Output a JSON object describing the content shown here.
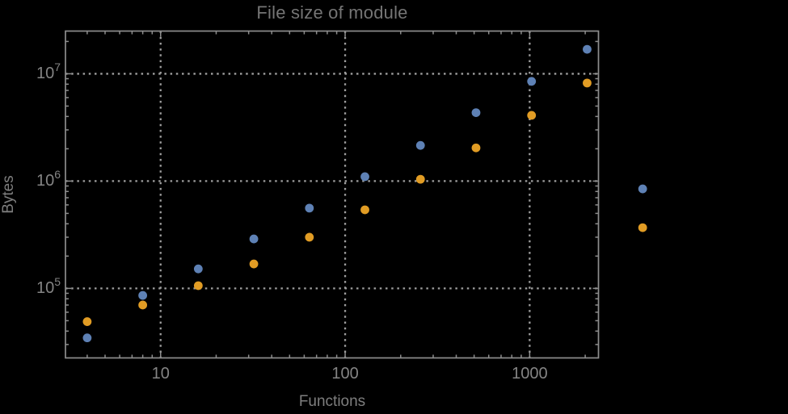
{
  "chart_data": {
    "type": "scatter",
    "title": "File size of module",
    "xlabel": "Functions",
    "ylabel": "Bytes",
    "x_scale": "log",
    "y_scale": "log",
    "xlim": [
      3.05,
      2360
    ],
    "ylim": [
      22500,
      25000000
    ],
    "grid": "dotted-major",
    "legend": "none",
    "x_ticks": [
      {
        "label": "10",
        "value": 10
      },
      {
        "label": "100",
        "value": 100
      },
      {
        "label": "1000",
        "value": 1000
      }
    ],
    "y_ticks": [
      {
        "base": "10",
        "exp": "5",
        "value": 100000
      },
      {
        "base": "10",
        "exp": "6",
        "value": 1000000
      },
      {
        "base": "10",
        "exp": "7",
        "value": 10000000
      }
    ],
    "x": [
      4,
      8,
      16,
      32,
      64,
      128,
      256,
      512,
      1024,
      2048,
      4096
    ],
    "series": [
      {
        "name": "blue",
        "color": "#5e81b5",
        "values": [
          34600,
          86000,
          152000,
          289000,
          560000,
          1100000,
          2150000,
          4340000,
          8500000,
          16900000,
          846000
        ]
      },
      {
        "name": "orange",
        "color": "#e19c24",
        "values": [
          49000,
          70000,
          106000,
          169000,
          300000,
          540000,
          1040000,
          2040000,
          4100000,
          8200000,
          368000
        ]
      }
    ],
    "marker": {
      "shape": "circle",
      "radius": 5.4
    },
    "clip_points_to_frame": false
  },
  "style": {
    "background": "#000000",
    "frame_color": "#8d8d8d",
    "grid_color": "#9e9e9e",
    "tick_label_color": "#848484",
    "axis_label_color": "#7e7e7e",
    "title_color": "#757575"
  }
}
